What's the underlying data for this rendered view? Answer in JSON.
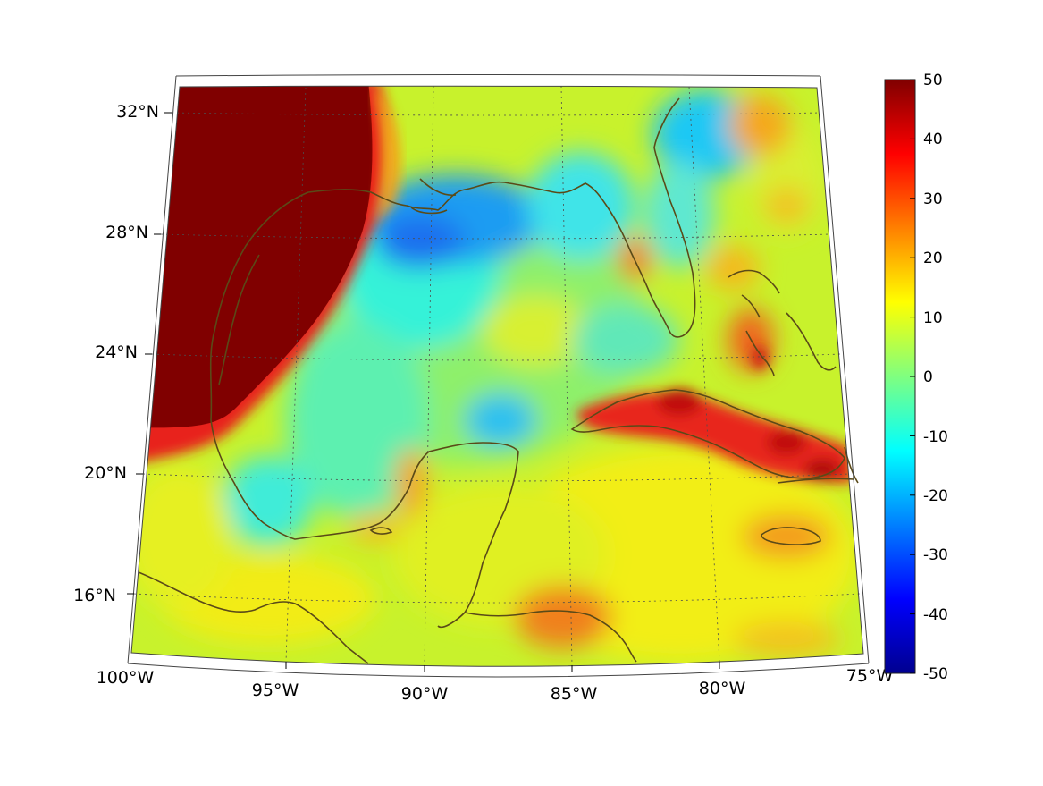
{
  "map": {
    "lon_labels": [
      "100°W",
      "95°W",
      "90°W",
      "85°W",
      "80°W",
      "75°W"
    ],
    "lat_labels": [
      "16°N",
      "20°N",
      "24°N",
      "28°N",
      "32°N"
    ],
    "extent": {
      "lon_min": -100,
      "lon_max": -75,
      "lat_min": 14.2,
      "lat_max": 32.8
    },
    "coastline_color": "#5a4a18",
    "graticule_color": "#4d4d4d",
    "field_description_colors": {
      "deep_red": "#800000",
      "red": "#e8201c",
      "orange": "#f7a21a",
      "yellow": "#f3ec11",
      "yellow_green": "#c6f12c",
      "green": "#8af36a",
      "cyan": "#2df4e8",
      "light_blue": "#1ec8f4",
      "blue": "#1a78f0"
    }
  },
  "colorbar": {
    "ticks": [
      "50",
      "40",
      "30",
      "20",
      "10",
      "0",
      "-10",
      "-20",
      "-30",
      "-40",
      "-50"
    ],
    "min": -50,
    "max": 50,
    "colormap": "jet"
  }
}
